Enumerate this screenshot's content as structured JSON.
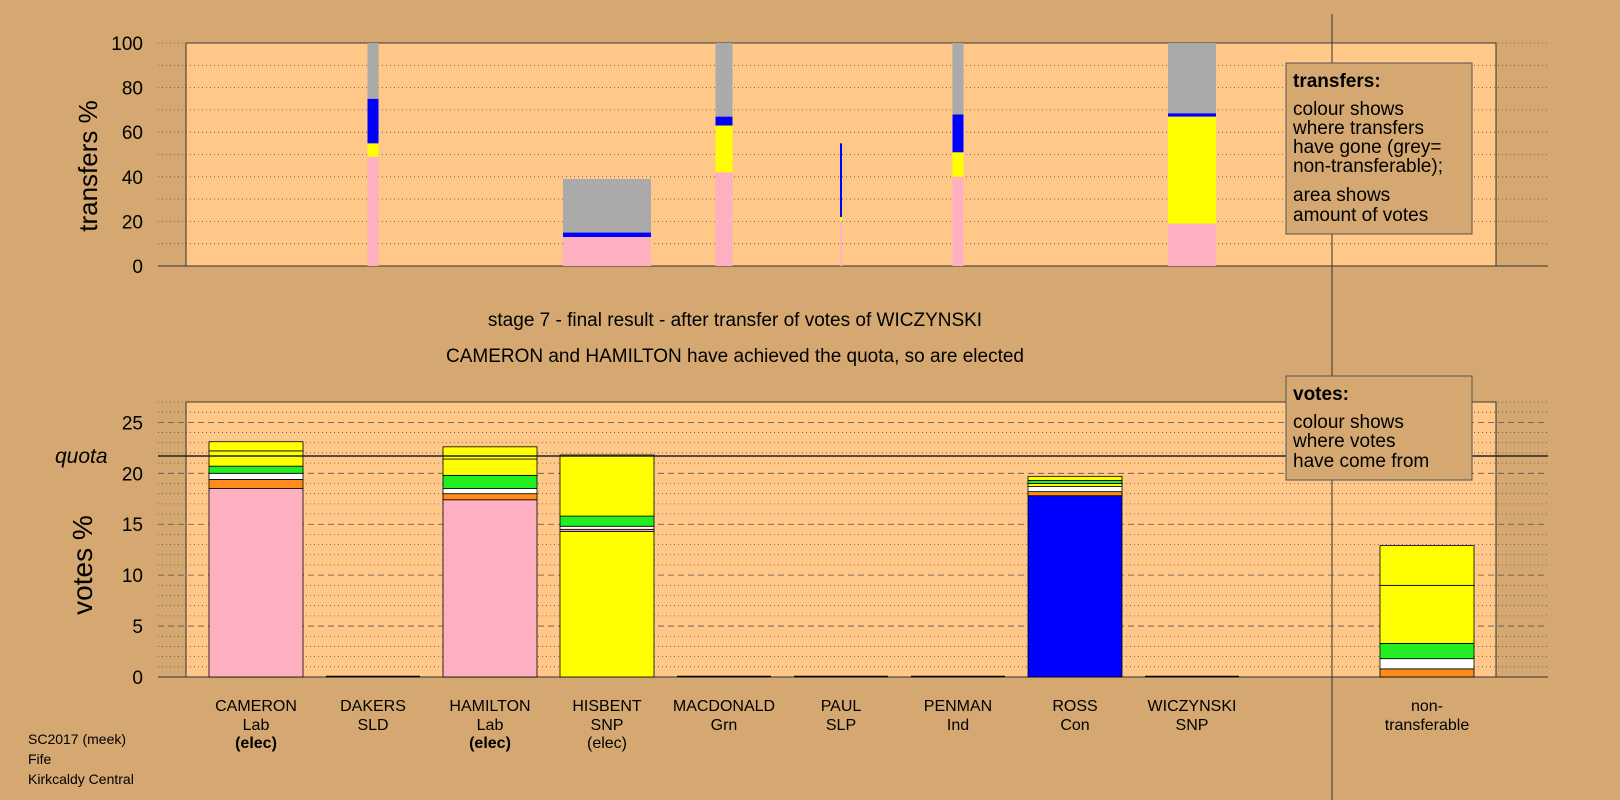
{
  "stage_title": "stage 7 - final result - after transfer of votes of WICZYNSKI",
  "stage_subtitle": "CAMERON and HAMILTON have achieved the quota, so are elected",
  "footer": [
    "SC2017 (meek)",
    "Fife",
    "Kirkcaldy Central"
  ],
  "transfers_legend": {
    "title": "transfers:",
    "lines": [
      "colour shows",
      "where transfers",
      "have gone (grey=",
      "non-transferable);",
      "area shows",
      "amount of votes"
    ]
  },
  "votes_legend": {
    "title": "votes:",
    "lines": [
      "colour shows",
      "where votes",
      "have come from"
    ]
  },
  "colors": {
    "background": "#d4a870",
    "plot_area": "#ffc888",
    "Lab": "#ffb0c0",
    "Con": "#0000ff",
    "SNP": "#ffff00",
    "Grn": "#22ee22",
    "SLD": "#ff8c1a",
    "SLP": "#ffffff",
    "Ind": "#ffffff",
    "nontransferable": "#aaaaaa"
  },
  "chart_data": [
    {
      "type": "bar",
      "stacked": true,
      "ylabel": "transfers %",
      "ylim": [
        0,
        100
      ],
      "yticks": [
        0,
        20,
        40,
        60,
        80,
        100
      ],
      "grid": "dotted",
      "columns": [
        {
          "name": "DAKERS",
          "segments": [
            {
              "party": "Lab",
              "value": 49
            },
            {
              "party": "SNP",
              "value": 6
            },
            {
              "party": "Con",
              "value": 20
            },
            {
              "party": "nontransferable",
              "value": 25
            }
          ]
        },
        {
          "name": "HISBENT",
          "segments": [
            {
              "party": "Lab",
              "value": 13
            },
            {
              "party": "Con",
              "value": 2
            },
            {
              "party": "nontransferable",
              "value": 24
            }
          ]
        },
        {
          "name": "MACDONALD",
          "segments": [
            {
              "party": "Lab",
              "value": 42
            },
            {
              "party": "SNP",
              "value": 21
            },
            {
              "party": "Con",
              "value": 4
            },
            {
              "party": "nontransferable",
              "value": 33
            }
          ]
        },
        {
          "name": "PAUL",
          "segments": [
            {
              "party": "Lab",
              "value": 20
            },
            {
              "party": "SNP",
              "value": 2
            },
            {
              "party": "Con",
              "value": 33
            }
          ]
        },
        {
          "name": "PENMAN",
          "segments": [
            {
              "party": "Lab",
              "value": 40
            },
            {
              "party": "SNP",
              "value": 11
            },
            {
              "party": "Con",
              "value": 17
            },
            {
              "party": "nontransferable",
              "value": 32
            }
          ]
        },
        {
          "name": "WICZYNSKI",
          "segments": [
            {
              "party": "Lab",
              "value": 19
            },
            {
              "party": "SNP",
              "value": 48
            },
            {
              "party": "Con",
              "value": 1.5
            },
            {
              "party": "nontransferable",
              "value": 31.5
            }
          ]
        }
      ]
    },
    {
      "type": "bar",
      "stacked": true,
      "ylabel": "votes %",
      "ylim": [
        0,
        27
      ],
      "yticks": [
        0,
        5,
        10,
        15,
        20,
        25
      ],
      "quota": 21.7,
      "quota_label": "quota",
      "grid": "dashed",
      "categories": [
        {
          "name": "CAMERON",
          "party": "Lab",
          "status": "(elec)",
          "status_bold": true
        },
        {
          "name": "DAKERS",
          "party": "SLD",
          "status": ""
        },
        {
          "name": "HAMILTON",
          "party": "Lab",
          "status": "(elec)",
          "status_bold": true
        },
        {
          "name": "HISBENT",
          "party": "SNP",
          "status": "(elec)",
          "status_bold": false
        },
        {
          "name": "MACDONALD",
          "party": "Grn",
          "status": ""
        },
        {
          "name": "PAUL",
          "party": "SLP",
          "status": ""
        },
        {
          "name": "PENMAN",
          "party": "Ind",
          "status": ""
        },
        {
          "name": "ROSS",
          "party": "Con",
          "status": ""
        },
        {
          "name": "WICZYNSKI",
          "party": "SNP",
          "status": ""
        }
      ],
      "nontransferable_label": [
        "non-",
        "transferable"
      ],
      "stacks": [
        {
          "name": "CAMERON",
          "segments": [
            {
              "party": "Lab",
              "value": 18.5
            },
            {
              "party": "SLD",
              "value": 0.9
            },
            {
              "party": "SLP",
              "value": 0.6
            },
            {
              "party": "Grn",
              "value": 0.7
            },
            {
              "party": "SNP",
              "value": 1.5
            },
            {
              "party": "SNP",
              "value": 0.9
            }
          ]
        },
        {
          "name": "DAKERS",
          "segments": []
        },
        {
          "name": "HAMILTON",
          "segments": [
            {
              "party": "Lab",
              "value": 17.4
            },
            {
              "party": "SLD",
              "value": 0.6
            },
            {
              "party": "SLP",
              "value": 0.5
            },
            {
              "party": "Grn",
              "value": 1.3
            },
            {
              "party": "SNP",
              "value": 1.6
            },
            {
              "party": "SNP",
              "value": 1.2
            }
          ]
        },
        {
          "name": "HISBENT",
          "segments": [
            {
              "party": "SNP",
              "value": 14.3
            },
            {
              "party": "Lab",
              "value": 0.2
            },
            {
              "party": "SLP",
              "value": 0.3
            },
            {
              "party": "Grn",
              "value": 1.0
            },
            {
              "party": "SNP",
              "value": 6.0
            }
          ]
        },
        {
          "name": "MACDONALD",
          "segments": []
        },
        {
          "name": "PAUL",
          "segments": []
        },
        {
          "name": "PENMAN",
          "segments": []
        },
        {
          "name": "ROSS",
          "segments": [
            {
              "party": "Con",
              "value": 17.8
            },
            {
              "party": "SLD",
              "value": 0.4
            },
            {
              "party": "SLP",
              "value": 0.5
            },
            {
              "party": "SNP",
              "value": 0.3
            },
            {
              "party": "Grn",
              "value": 0.3
            },
            {
              "party": "SNP",
              "value": 0.4
            }
          ]
        },
        {
          "name": "WICZYNSKI",
          "segments": []
        },
        {
          "name": "non-transferable",
          "segments": [
            {
              "party": "SLD",
              "value": 0.8
            },
            {
              "party": "SLP",
              "value": 1.0
            },
            {
              "party": "Grn",
              "value": 1.5
            },
            {
              "party": "SNP",
              "value": 5.7
            },
            {
              "party": "SNP",
              "value": 3.9
            }
          ]
        }
      ]
    }
  ]
}
